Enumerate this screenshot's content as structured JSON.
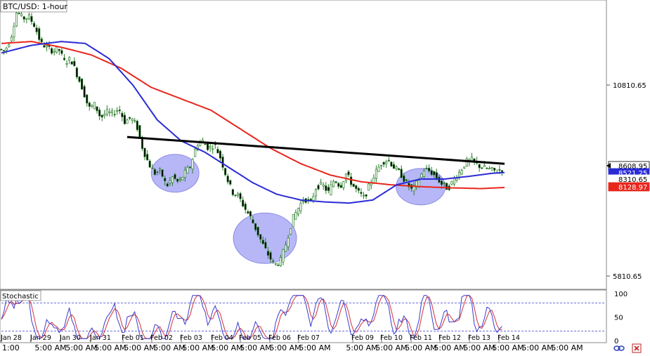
{
  "chart_data": [
    {
      "type": "candlestick",
      "title": "BTC/USD: 1-hour",
      "ylim": [
        5500,
        13000
      ],
      "y_ticks": [
        {
          "value": 10810.65,
          "label": "10810.65"
        },
        {
          "value": 5810.65,
          "label": "5810.65"
        }
      ],
      "price_badges": [
        {
          "value": 8608.95,
          "label": "8608.95",
          "style": "current"
        },
        {
          "value": 8521.25,
          "label": "8521.25",
          "style": "ma-blue"
        },
        {
          "value": 8310.65,
          "label": "8310.65",
          "style": "tick"
        },
        {
          "value": 8128.97,
          "label": "8128.97",
          "style": "ma-red"
        }
      ],
      "x_day_labels": [
        "Jan 28",
        "Jan 29",
        "Jan 30",
        "Jan 31",
        "Feb 01",
        "Feb 02",
        "Feb 03",
        "Feb 04",
        "Feb 05",
        "Feb 06",
        "Feb 07",
        "Feb 09",
        "Feb 10",
        "Feb 11",
        "Feb 12",
        "Feb 13",
        "Feb 14"
      ],
      "x_time_labels": [
        "1:00",
        "5:00 AM",
        "5:00 AM",
        "5:00 AM",
        "5:00 AM",
        "5:00 AM",
        "5:00 AM",
        "5:00 AM",
        "5:00 AM",
        "5:00 AM",
        "5:00 AM",
        "5:00 AM",
        "5:00 AM",
        "5:00 AM",
        "5:00 AM",
        "5:00 AM",
        "5:00 AM",
        "5:00 AM",
        "5:00 AM"
      ],
      "price_path": [
        [
          0,
          11750
        ],
        [
          2,
          11700
        ],
        [
          4,
          12050
        ],
        [
          6,
          12750
        ],
        [
          8,
          12550
        ],
        [
          10,
          12600
        ],
        [
          12,
          12350
        ],
        [
          14,
          11900
        ],
        [
          16,
          11800
        ],
        [
          18,
          11700
        ],
        [
          20,
          11750
        ],
        [
          22,
          11400
        ],
        [
          24,
          11500
        ],
        [
          26,
          11100
        ],
        [
          28,
          10700
        ],
        [
          30,
          10200
        ],
        [
          32,
          10300
        ],
        [
          34,
          9950
        ],
        [
          36,
          10100
        ],
        [
          38,
          10050
        ],
        [
          40,
          10200
        ],
        [
          42,
          9850
        ],
        [
          44,
          9950
        ],
        [
          46,
          9750
        ],
        [
          48,
          9150
        ],
        [
          50,
          8750
        ],
        [
          52,
          8500
        ],
        [
          54,
          8550
        ],
        [
          56,
          8150
        ],
        [
          58,
          8400
        ],
        [
          60,
          8250
        ],
        [
          62,
          8500
        ],
        [
          64,
          8700
        ],
        [
          66,
          9250
        ],
        [
          68,
          9350
        ],
        [
          70,
          9150
        ],
        [
          72,
          9250
        ],
        [
          74,
          8900
        ],
        [
          76,
          8400
        ],
        [
          78,
          8000
        ],
        [
          80,
          7900
        ],
        [
          82,
          7600
        ],
        [
          84,
          7350
        ],
        [
          86,
          7000
        ],
        [
          88,
          6650
        ],
        [
          90,
          6350
        ],
        [
          92,
          6100
        ],
        [
          94,
          6200
        ],
        [
          96,
          6700
        ],
        [
          98,
          7300
        ],
        [
          100,
          7600
        ],
        [
          102,
          7850
        ],
        [
          104,
          7700
        ],
        [
          106,
          8150
        ],
        [
          108,
          8200
        ],
        [
          110,
          8000
        ],
        [
          112,
          8350
        ],
        [
          114,
          8150
        ],
        [
          116,
          8500
        ],
        [
          118,
          8200
        ],
        [
          120,
          8000
        ],
        [
          122,
          7850
        ],
        [
          124,
          8250
        ],
        [
          126,
          8550
        ],
        [
          128,
          8800
        ],
        [
          130,
          8850
        ],
        [
          132,
          8650
        ],
        [
          134,
          8500
        ],
        [
          136,
          8250
        ],
        [
          138,
          8050
        ],
        [
          140,
          8300
        ],
        [
          142,
          8600
        ],
        [
          144,
          8550
        ],
        [
          146,
          8400
        ],
        [
          148,
          8200
        ],
        [
          150,
          8100
        ],
        [
          152,
          8350
        ],
        [
          154,
          8550
        ],
        [
          156,
          8800
        ],
        [
          158,
          8850
        ],
        [
          160,
          8700
        ],
        [
          162,
          8650
        ],
        [
          164,
          8600
        ],
        [
          166,
          8550
        ],
        [
          168,
          8610
        ]
      ],
      "ma_blue": [
        [
          0,
          11650
        ],
        [
          10,
          11850
        ],
        [
          20,
          11950
        ],
        [
          28,
          11900
        ],
        [
          36,
          11500
        ],
        [
          44,
          10800
        ],
        [
          52,
          9900
        ],
        [
          60,
          9350
        ],
        [
          68,
          9050
        ],
        [
          76,
          8650
        ],
        [
          84,
          8250
        ],
        [
          92,
          7950
        ],
        [
          100,
          7800
        ],
        [
          108,
          7750
        ],
        [
          116,
          7720
        ],
        [
          124,
          7800
        ],
        [
          132,
          8200
        ],
        [
          140,
          8350
        ],
        [
          148,
          8350
        ],
        [
          156,
          8420
        ],
        [
          164,
          8500
        ],
        [
          168,
          8521
        ]
      ],
      "ma_red": [
        [
          0,
          11900
        ],
        [
          10,
          11950
        ],
        [
          20,
          11800
        ],
        [
          30,
          11600
        ],
        [
          40,
          11250
        ],
        [
          50,
          10750
        ],
        [
          60,
          10450
        ],
        [
          70,
          10150
        ],
        [
          80,
          9650
        ],
        [
          90,
          9150
        ],
        [
          100,
          8750
        ],
        [
          110,
          8450
        ],
        [
          120,
          8280
        ],
        [
          130,
          8200
        ],
        [
          140,
          8150
        ],
        [
          150,
          8120
        ],
        [
          160,
          8100
        ],
        [
          168,
          8129
        ]
      ],
      "trendline": [
        [
          42,
          9450
        ],
        [
          168,
          8750
        ]
      ],
      "highlights": [
        [
          58,
          8500
        ],
        [
          88,
          6800
        ],
        [
          140,
          8150
        ]
      ],
      "stochastic": {
        "label": "Stochastic",
        "ylim": [
          0,
          100
        ],
        "y_ticks": [
          100,
          50,
          0
        ],
        "levels": [
          80,
          20
        ]
      }
    }
  ],
  "colors": {
    "ma_blue": "#2b2bd6",
    "ma_red": "#e8261c",
    "trendline": "#000000",
    "candle": "#2a7d2a",
    "highlight": "#7b7bf0",
    "stoch_k": "#3b3bd0",
    "stoch_d": "#d0303c"
  },
  "icons": {
    "footer": "link-chain-icon",
    "corner": "close-x-icon"
  }
}
